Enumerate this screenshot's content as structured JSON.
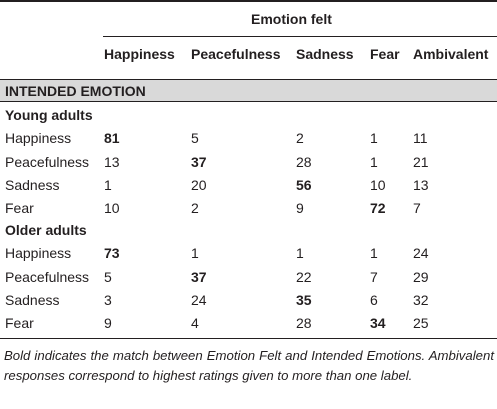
{
  "table": {
    "header_group": "Emotion felt",
    "columns": [
      "Happiness",
      "Peacefulness",
      "Sadness",
      "Fear",
      "Ambivalent"
    ],
    "section_title": "INTENDED EMOTION",
    "groups": [
      {
        "name": "Young adults",
        "rows": [
          {
            "label": "Happiness",
            "values": [
              "81",
              "5",
              "2",
              "1",
              "11"
            ],
            "bold_index": 0
          },
          {
            "label": "Peacefulness",
            "values": [
              "13",
              "37",
              "28",
              "1",
              "21"
            ],
            "bold_index": 1
          },
          {
            "label": "Sadness",
            "values": [
              "1",
              "20",
              "56",
              "10",
              "13"
            ],
            "bold_index": 2
          },
          {
            "label": "Fear",
            "values": [
              "10",
              "2",
              "9",
              "72",
              "7"
            ],
            "bold_index": 3
          }
        ]
      },
      {
        "name": "Older adults",
        "rows": [
          {
            "label": "Happiness",
            "values": [
              "73",
              "1",
              "1",
              "1",
              "24"
            ],
            "bold_index": 0
          },
          {
            "label": "Peacefulness",
            "values": [
              "5",
              "37",
              "22",
              "7",
              "29"
            ],
            "bold_index": 1
          },
          {
            "label": "Sadness",
            "values": [
              "3",
              "24",
              "35",
              "6",
              "32"
            ],
            "bold_index": 2
          },
          {
            "label": "Fear",
            "values": [
              "9",
              "4",
              "28",
              "34",
              "25"
            ],
            "bold_index": 3
          }
        ]
      }
    ],
    "footnote": "Bold indicates the match between Emotion Felt and Intended Emotions. Ambivalent responses correspond to highest ratings given to more than one label."
  },
  "colors": {
    "text": "#231f20",
    "section_band": "#d9d9d9",
    "rules": "#231f20"
  }
}
